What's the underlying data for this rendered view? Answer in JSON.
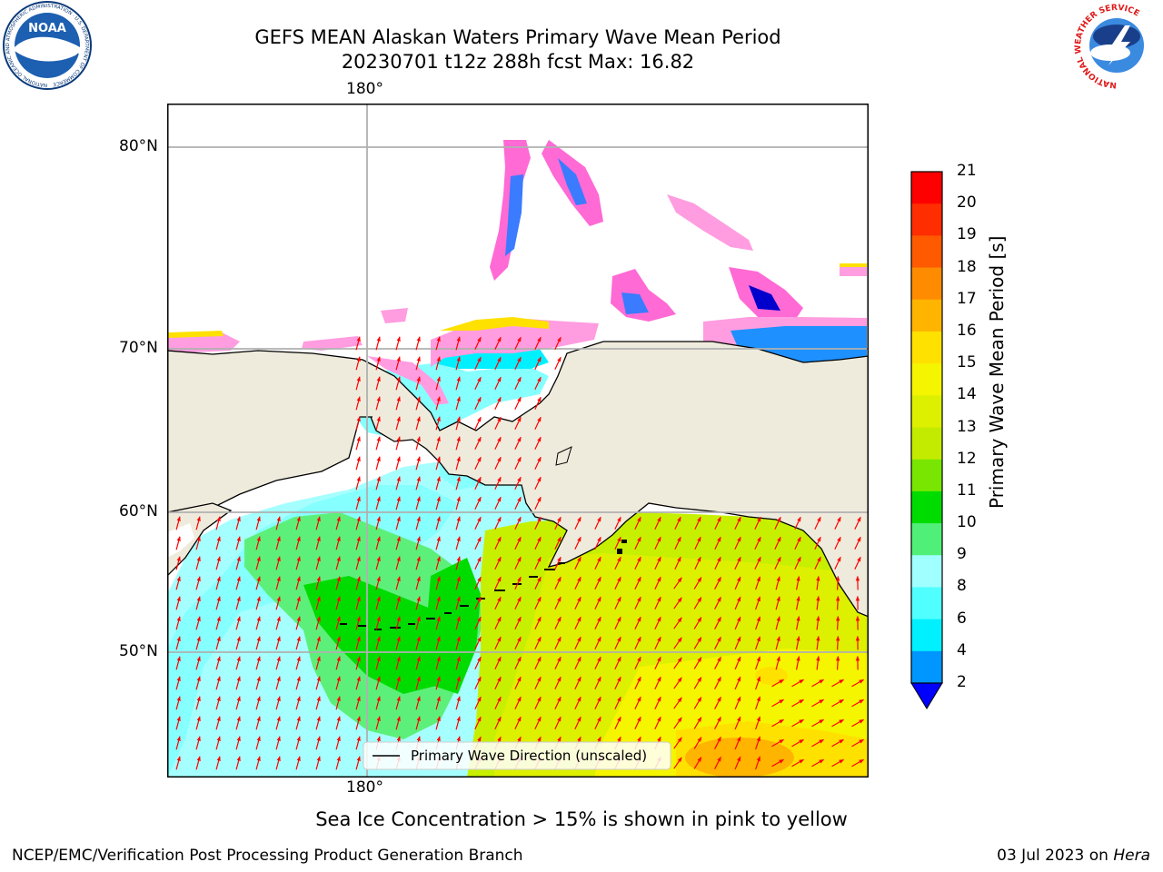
{
  "title": {
    "line1": "GEFS MEAN Alaskan Waters Primary Wave Mean Period",
    "line2": "20230701 t12z 288h fcst   Max: 16.82"
  },
  "map": {
    "lon_label_top": "180°",
    "lon_label_bottom": "180°",
    "lat_labels": [
      "80°N",
      "70°N",
      "60°N",
      "50°N"
    ],
    "legend_label": "Primary Wave Direction (unscaled)"
  },
  "colorbar": {
    "label": "Primary Wave Mean Period [s]",
    "ticks": [
      "21",
      "20",
      "19",
      "18",
      "17",
      "16",
      "15",
      "14",
      "13",
      "12",
      "11",
      "10",
      "9",
      "8",
      "6",
      "4",
      "2"
    ],
    "colors": [
      "#ff0000",
      "#ff2d00",
      "#ff5a00",
      "#ff8c00",
      "#ffb400",
      "#ffe100",
      "#f5f500",
      "#dcf000",
      "#c3eb00",
      "#78e600",
      "#00dc00",
      "#50f078",
      "#a0ffff",
      "#50ffff",
      "#00f0ff",
      "#0096ff",
      "#0000ff"
    ]
  },
  "notes": {
    "ice": "Sea Ice Concentration > 15% is shown in pink to yellow"
  },
  "footer": {
    "left": "NCEP/EMC/Verification Post Processing Product Generation Branch",
    "date": "03 Jul 2023 on ",
    "machine": "Hera"
  },
  "logos": {
    "noaa_text": "NOAA",
    "noaa_ring": "NATIONAL OCEANIC AND ATMOSPHERIC ADMINISTRATION · U.S. DEPARTMENT OF COMMERCE",
    "nws_ring": "NATIONAL WEATHER SERVICE"
  }
}
